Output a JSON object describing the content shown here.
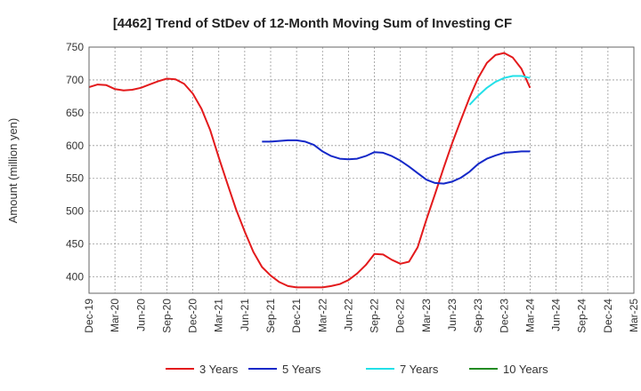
{
  "chart_data": {
    "type": "line",
    "title": "[4462]  Trend of StDev of 12-Month Moving Sum of Investing CF",
    "xlabel": "",
    "ylabel": "Amount (million yen)",
    "ylim": [
      375,
      750
    ],
    "yticks": [
      400,
      450,
      500,
      550,
      600,
      650,
      700,
      750
    ],
    "x_range": [
      "2019-12",
      "2025-03"
    ],
    "x_tick_labels": [
      "Dec-19",
      "Mar-20",
      "Jun-20",
      "Sep-20",
      "Dec-20",
      "Mar-21",
      "Jun-21",
      "Sep-21",
      "Dec-21",
      "Mar-22",
      "Jun-22",
      "Sep-22",
      "Dec-22",
      "Mar-23",
      "Jun-23",
      "Sep-23",
      "Dec-23",
      "Mar-24",
      "Jun-24",
      "Sep-24",
      "Dec-24",
      "Mar-25"
    ],
    "grid": true,
    "legend_position": "bottom",
    "series": [
      {
        "name": "3 Years",
        "color": "#e31a1c",
        "points": [
          [
            "2019-12",
            689
          ],
          [
            "2020-01",
            693
          ],
          [
            "2020-02",
            692
          ],
          [
            "2020-03",
            686
          ],
          [
            "2020-04",
            684
          ],
          [
            "2020-05",
            685
          ],
          [
            "2020-06",
            688
          ],
          [
            "2020-07",
            693
          ],
          [
            "2020-08",
            698
          ],
          [
            "2020-09",
            702
          ],
          [
            "2020-10",
            701
          ],
          [
            "2020-11",
            694
          ],
          [
            "2020-12",
            679
          ],
          [
            "2021-01",
            656
          ],
          [
            "2021-02",
            624
          ],
          [
            "2021-03",
            582
          ],
          [
            "2021-04",
            542
          ],
          [
            "2021-05",
            503
          ],
          [
            "2021-06",
            469
          ],
          [
            "2021-07",
            438
          ],
          [
            "2021-08",
            415
          ],
          [
            "2021-09",
            402
          ],
          [
            "2021-10",
            392
          ],
          [
            "2021-11",
            386
          ],
          [
            "2021-12",
            384
          ],
          [
            "2022-01",
            384
          ],
          [
            "2022-02",
            384
          ],
          [
            "2022-03",
            384
          ],
          [
            "2022-04",
            386
          ],
          [
            "2022-05",
            389
          ],
          [
            "2022-06",
            395
          ],
          [
            "2022-07",
            405
          ],
          [
            "2022-08",
            418
          ],
          [
            "2022-09",
            435
          ],
          [
            "2022-10",
            434
          ],
          [
            "2022-11",
            426
          ],
          [
            "2022-12",
            420
          ],
          [
            "2023-01",
            423
          ],
          [
            "2023-02",
            445
          ],
          [
            "2023-03",
            487
          ],
          [
            "2023-04",
            526
          ],
          [
            "2023-05",
            566
          ],
          [
            "2023-06",
            604
          ],
          [
            "2023-07",
            639
          ],
          [
            "2023-08",
            673
          ],
          [
            "2023-09",
            703
          ],
          [
            "2023-10",
            726
          ],
          [
            "2023-11",
            738
          ],
          [
            "2023-12",
            741
          ],
          [
            "2024-01",
            734
          ],
          [
            "2024-02",
            717
          ],
          [
            "2024-03",
            688
          ]
        ]
      },
      {
        "name": "5 Years",
        "color": "#1428c8",
        "points": [
          [
            "2021-08",
            606
          ],
          [
            "2021-09",
            606
          ],
          [
            "2021-10",
            607
          ],
          [
            "2021-11",
            608
          ],
          [
            "2021-12",
            608
          ],
          [
            "2022-01",
            606
          ],
          [
            "2022-02",
            601
          ],
          [
            "2022-03",
            591
          ],
          [
            "2022-04",
            584
          ],
          [
            "2022-05",
            580
          ],
          [
            "2022-06",
            579
          ],
          [
            "2022-07",
            580
          ],
          [
            "2022-08",
            584
          ],
          [
            "2022-09",
            590
          ],
          [
            "2022-10",
            589
          ],
          [
            "2022-11",
            584
          ],
          [
            "2022-12",
            577
          ],
          [
            "2023-01",
            568
          ],
          [
            "2023-02",
            558
          ],
          [
            "2023-03",
            548
          ],
          [
            "2023-04",
            543
          ],
          [
            "2023-05",
            542
          ],
          [
            "2023-06",
            545
          ],
          [
            "2023-07",
            551
          ],
          [
            "2023-08",
            560
          ],
          [
            "2023-09",
            572
          ],
          [
            "2023-10",
            580
          ],
          [
            "2023-11",
            585
          ],
          [
            "2023-12",
            589
          ],
          [
            "2024-01",
            590
          ],
          [
            "2024-02",
            591
          ],
          [
            "2024-03",
            591
          ]
        ]
      },
      {
        "name": "7 Years",
        "color": "#22e0e8",
        "points": [
          [
            "2023-08",
            662
          ],
          [
            "2023-09",
            676
          ],
          [
            "2023-10",
            688
          ],
          [
            "2023-11",
            697
          ],
          [
            "2023-12",
            703
          ],
          [
            "2024-01",
            706
          ],
          [
            "2024-02",
            706
          ],
          [
            "2024-03",
            703
          ]
        ]
      },
      {
        "name": "10 Years",
        "color": "#228b22",
        "points": []
      }
    ]
  }
}
